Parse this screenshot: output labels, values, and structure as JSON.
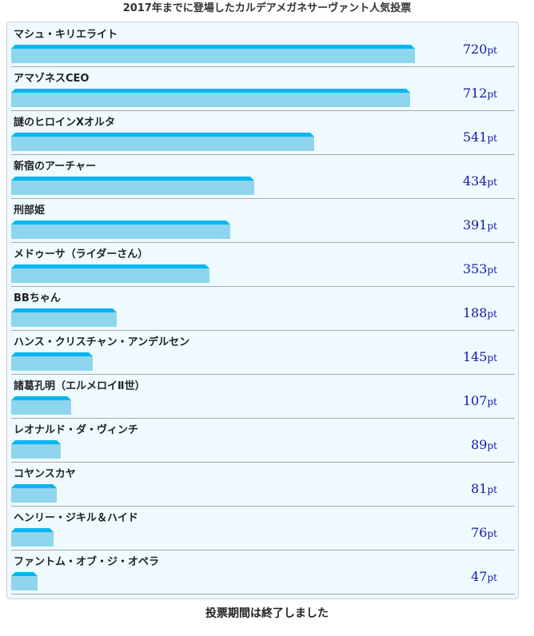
{
  "chart_data": {
    "type": "bar",
    "orientation": "horizontal",
    "title": "2017年までに登場したカルデアメガネサーヴァント人気投票",
    "unit": "pt",
    "xlim": [
      0,
      720
    ],
    "categories": [
      "マシュ・キリエライト",
      "アマゾネスCEO",
      "謎のヒロインXオルタ",
      "新宿のアーチャー",
      "刑部姫",
      "メドゥーサ（ライダーさん）",
      "BBちゃん",
      "ハンス・クリスチャン・アンデルセン",
      "諸葛孔明（エルメロイⅡ世）",
      "レオナルド・ダ・ヴィンチ",
      "コヤンスカヤ",
      "ヘンリー・ジキル＆ハイド",
      "ファントム・オブ・ジ・オペラ"
    ],
    "values": [
      720,
      712,
      541,
      434,
      391,
      353,
      188,
      145,
      107,
      89,
      81,
      76,
      47
    ]
  },
  "footer": "投票期間は終了しました",
  "colors": {
    "bar_top": "#00b6f3",
    "bar_fill": "#8fd5ee",
    "value_text": "#1717a6",
    "panel_bg": "#eefafe"
  }
}
